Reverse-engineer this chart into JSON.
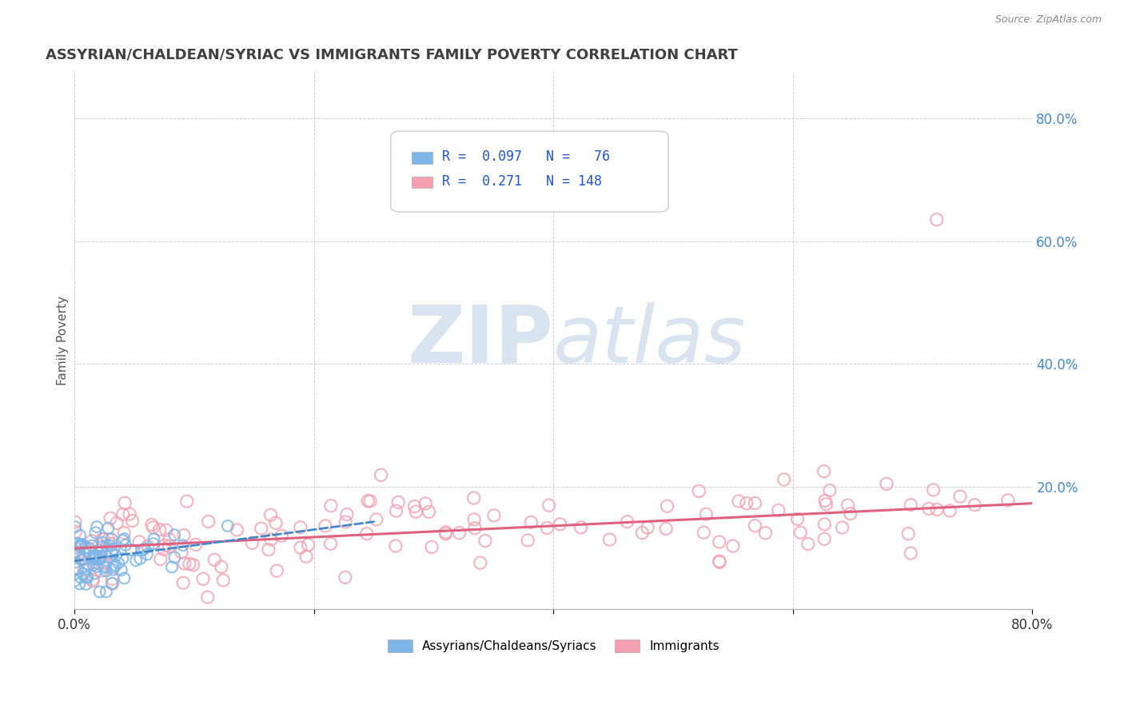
{
  "title": "ASSYRIAN/CHALDEAN/SYRIAC VS IMMIGRANTS FAMILY POVERTY CORRELATION CHART",
  "source": "Source: ZipAtlas.com",
  "ylabel": "Family Poverty",
  "legend_label1": "Assyrians/Chaldeans/Syriacs",
  "legend_label2": "Immigrants",
  "R1": 0.097,
  "N1": 76,
  "R2": 0.271,
  "N2": 148,
  "color1": "#7EB6E8",
  "color2": "#F4A0B0",
  "trend_color1": "#4488CC",
  "trend_color2": "#E06080",
  "background_color": "#FFFFFF",
  "watermark_color": "#D8E4F0",
  "xlim": [
    0.0,
    0.8
  ],
  "ylim": [
    0.0,
    0.875
  ],
  "title_fontsize": 13,
  "title_color": "#404040"
}
